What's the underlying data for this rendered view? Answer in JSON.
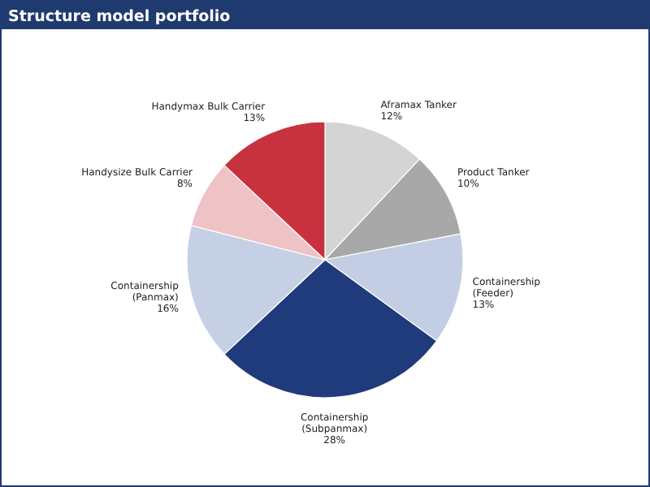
{
  "chart_data": {
    "type": "pie",
    "title": "Structure model portfolio",
    "categories": [
      "Aframax Tanker",
      "Product Tanker",
      "Containership (Feeder)",
      "Containership (Subpanmax)",
      "Containership (Panmax)",
      "Handysize Bulk Carrier",
      "Handymax Bulk Carrier"
    ],
    "values": [
      12,
      10,
      13,
      28,
      16,
      8,
      13
    ],
    "value_labels": [
      "12%",
      "10%",
      "13%",
      "28%",
      "16%",
      "8%",
      "13%"
    ],
    "colors": [
      "#d4d4d4",
      "#a8a8a8",
      "#c3cde3",
      "#1f3b7c",
      "#c6d0e5",
      "#efc2c6",
      "#c8323e"
    ]
  }
}
